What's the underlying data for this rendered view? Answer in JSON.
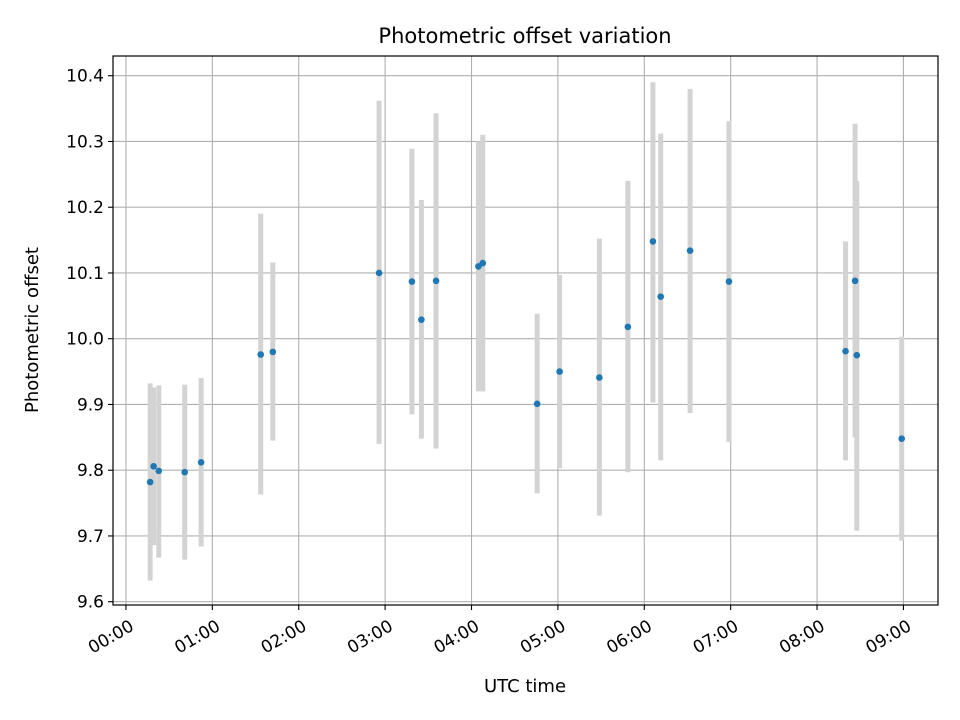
{
  "chart_data": {
    "type": "scatter",
    "title": "Photometric offset variation",
    "xlabel": "UTC time",
    "ylabel": "Photometric offset",
    "x_unit": "hours",
    "xlim": [
      -0.15,
      9.4
    ],
    "ylim": [
      9.595,
      10.43
    ],
    "x_ticks": [
      0,
      1,
      2,
      3,
      4,
      5,
      6,
      7,
      8,
      9
    ],
    "x_tick_labels": [
      "00:00",
      "01:00",
      "02:00",
      "03:00",
      "04:00",
      "05:00",
      "06:00",
      "07:00",
      "08:00",
      "09:00"
    ],
    "y_ticks": [
      9.6,
      9.7,
      9.8,
      9.9,
      10.0,
      10.1,
      10.2,
      10.3,
      10.4
    ],
    "y_tick_labels": [
      "9.6",
      "9.7",
      "9.8",
      "9.9",
      "10.0",
      "10.1",
      "10.2",
      "10.3",
      "10.4"
    ],
    "grid": true,
    "legend": "none",
    "marker_color": "#1f77b4",
    "errorbar_color": "#d3d3d3",
    "series": [
      {
        "points": [
          {
            "x": 0.28,
            "y": 9.782,
            "lo": 9.632,
            "hi": 9.932
          },
          {
            "x": 0.32,
            "y": 9.806,
            "lo": 9.686,
            "hi": 9.926
          },
          {
            "x": 0.38,
            "y": 9.799,
            "lo": 9.667,
            "hi": 9.929
          },
          {
            "x": 0.68,
            "y": 9.797,
            "lo": 9.664,
            "hi": 9.93
          },
          {
            "x": 0.87,
            "y": 9.812,
            "lo": 9.684,
            "hi": 9.94
          },
          {
            "x": 1.56,
            "y": 9.976,
            "lo": 9.763,
            "hi": 10.19
          },
          {
            "x": 1.7,
            "y": 9.98,
            "lo": 9.845,
            "hi": 10.116
          },
          {
            "x": 2.93,
            "y": 10.1,
            "lo": 9.84,
            "hi": 10.362
          },
          {
            "x": 3.31,
            "y": 10.087,
            "lo": 9.885,
            "hi": 10.289
          },
          {
            "x": 3.42,
            "y": 10.029,
            "lo": 9.848,
            "hi": 10.211
          },
          {
            "x": 3.59,
            "y": 10.088,
            "lo": 9.833,
            "hi": 10.343
          },
          {
            "x": 4.08,
            "y": 10.11,
            "lo": 9.92,
            "hi": 10.3
          },
          {
            "x": 4.13,
            "y": 10.115,
            "lo": 9.92,
            "hi": 10.31
          },
          {
            "x": 4.76,
            "y": 9.901,
            "lo": 9.765,
            "hi": 10.038
          },
          {
            "x": 5.02,
            "y": 9.95,
            "lo": 9.803,
            "hi": 10.097
          },
          {
            "x": 5.48,
            "y": 9.941,
            "lo": 9.731,
            "hi": 10.152
          },
          {
            "x": 5.81,
            "y": 10.018,
            "lo": 9.797,
            "hi": 10.24
          },
          {
            "x": 6.1,
            "y": 10.148,
            "lo": 9.903,
            "hi": 10.39
          },
          {
            "x": 6.19,
            "y": 10.064,
            "lo": 9.815,
            "hi": 10.312
          },
          {
            "x": 6.53,
            "y": 10.134,
            "lo": 9.887,
            "hi": 10.38
          },
          {
            "x": 6.98,
            "y": 10.087,
            "lo": 9.843,
            "hi": 10.331
          },
          {
            "x": 8.33,
            "y": 9.981,
            "lo": 9.815,
            "hi": 10.148
          },
          {
            "x": 8.44,
            "y": 10.088,
            "lo": 9.85,
            "hi": 10.327
          },
          {
            "x": 8.46,
            "y": 9.975,
            "lo": 9.708,
            "hi": 10.24
          },
          {
            "x": 8.98,
            "y": 9.848,
            "lo": 9.693,
            "hi": 10.003
          }
        ]
      }
    ]
  }
}
